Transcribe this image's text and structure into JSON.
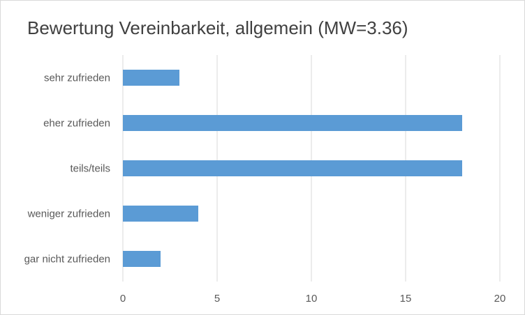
{
  "chart_data": {
    "type": "bar",
    "orientation": "horizontal",
    "title": "Bewertung Vereinbarkeit, allgemein (MW=3.36)",
    "categories": [
      "sehr zufrieden",
      "eher zufrieden",
      "teils/teils",
      "weniger zufrieden",
      "gar nicht zufrieden"
    ],
    "values": [
      3,
      18,
      18,
      4,
      2
    ],
    "xlim": [
      0,
      20
    ],
    "xticks": [
      "0",
      "5",
      "10",
      "15",
      "20"
    ],
    "grid": true,
    "legend": "none",
    "colors": {
      "bar": "#5b9bd5",
      "grid": "#d9d9d9",
      "text": "#595959",
      "title": "#404040"
    }
  }
}
